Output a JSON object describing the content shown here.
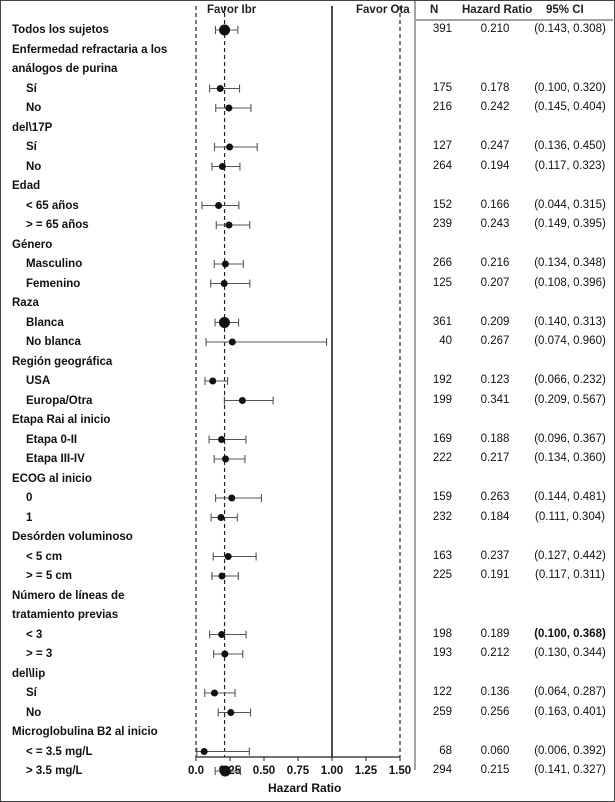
{
  "chart_data": {
    "type": "forest",
    "header": {
      "favor_left": "Favor Ibr",
      "favor_right": "Favor Ota",
      "n": "N",
      "hr": "Hazard Ratio",
      "ci": "95% CI"
    },
    "xlabel": "Hazard Ratio",
    "xlim": [
      0,
      1.5
    ],
    "x_ticks": [
      "0.0",
      "0.25",
      "0.50",
      "0.75",
      "1.00",
      "1.25",
      "1.50"
    ],
    "reference_line": 1.0,
    "overall_line": 0.21,
    "rows": [
      {
        "label": "Todos los sujetos",
        "kind": "row",
        "level": 0,
        "n": "391",
        "hr": "0.210",
        "ci": "(0.143, 0.308)",
        "est": 0.21,
        "lo": 0.143,
        "hi": 0.308,
        "big": true
      },
      {
        "label": "Enfermedad refractaria a los",
        "kind": "header",
        "level": 0
      },
      {
        "label": "análogos de purina",
        "kind": "header",
        "level": 0
      },
      {
        "label": "Sí",
        "kind": "row",
        "level": 1,
        "n": "175",
        "hr": "0.178",
        "ci": "(0.100, 0.320)",
        "est": 0.178,
        "lo": 0.1,
        "hi": 0.32
      },
      {
        "label": "No",
        "kind": "row",
        "level": 1,
        "n": "216",
        "hr": "0.242",
        "ci": "(0.145, 0.404)",
        "est": 0.242,
        "lo": 0.145,
        "hi": 0.404
      },
      {
        "label": "del\\17P",
        "kind": "header",
        "level": 0
      },
      {
        "label": "Sí",
        "kind": "row",
        "level": 1,
        "n": "127",
        "hr": "0.247",
        "ci": "(0.136, 0.450)",
        "est": 0.247,
        "lo": 0.136,
        "hi": 0.45
      },
      {
        "label": "No",
        "kind": "row",
        "level": 1,
        "n": "264",
        "hr": "0.194",
        "ci": "(0.117, 0.323)",
        "est": 0.194,
        "lo": 0.117,
        "hi": 0.323
      },
      {
        "label": "Edad",
        "kind": "header",
        "level": 0
      },
      {
        "label": "< 65 años",
        "kind": "row",
        "level": 1,
        "n": "152",
        "hr": "0.166",
        "ci": "(0.044, 0.315)",
        "est": 0.166,
        "lo": 0.044,
        "hi": 0.315
      },
      {
        "label": "> = 65 años",
        "kind": "row",
        "level": 1,
        "n": "239",
        "hr": "0.243",
        "ci": "(0.149, 0.395)",
        "est": 0.243,
        "lo": 0.149,
        "hi": 0.395
      },
      {
        "label": "Género",
        "kind": "header",
        "level": 0
      },
      {
        "label": "Masculino",
        "kind": "row",
        "level": 1,
        "n": "266",
        "hr": "0.216",
        "ci": "(0.134, 0.348)",
        "est": 0.216,
        "lo": 0.134,
        "hi": 0.348
      },
      {
        "label": "Femenino",
        "kind": "row",
        "level": 1,
        "n": "125",
        "hr": "0.207",
        "ci": "(0.108, 0.396)",
        "est": 0.207,
        "lo": 0.108,
        "hi": 0.396
      },
      {
        "label": "Raza",
        "kind": "header",
        "level": 0
      },
      {
        "label": "Blanca",
        "kind": "row",
        "level": 1,
        "n": "361",
        "hr": "0.209",
        "ci": "(0.140, 0.313)",
        "est": 0.209,
        "lo": 0.14,
        "hi": 0.313,
        "big": true
      },
      {
        "label": "No blanca",
        "kind": "row",
        "level": 1,
        "n": "40",
        "hr": "0.267",
        "ci": "(0.074, 0.960)",
        "est": 0.267,
        "lo": 0.074,
        "hi": 0.96
      },
      {
        "label": "Región geográfica",
        "kind": "header",
        "level": 0
      },
      {
        "label": "USA",
        "kind": "row",
        "level": 1,
        "n": "192",
        "hr": "0.123",
        "ci": "(0.066, 0.232)",
        "est": 0.123,
        "lo": 0.066,
        "hi": 0.232
      },
      {
        "label": "Europa/Otra",
        "kind": "row",
        "level": 1,
        "n": "199",
        "hr": "0.341",
        "ci": "(0.209, 0.567)",
        "est": 0.341,
        "lo": 0.209,
        "hi": 0.567
      },
      {
        "label": "Etapa Rai al inicio",
        "kind": "header",
        "level": 0
      },
      {
        "label": "Etapa 0-II",
        "kind": "row",
        "level": 1,
        "n": "169",
        "hr": "0.188",
        "ci": "(0.096, 0.367)",
        "est": 0.188,
        "lo": 0.096,
        "hi": 0.367
      },
      {
        "label": "Etapa III-IV",
        "kind": "row",
        "level": 1,
        "n": "222",
        "hr": "0.217",
        "ci": "(0.134, 0.360)",
        "est": 0.217,
        "lo": 0.134,
        "hi": 0.36
      },
      {
        "label": "ECOG al inicio",
        "kind": "header",
        "level": 0
      },
      {
        "label": "0",
        "kind": "row",
        "level": 1,
        "n": "159",
        "hr": "0.263",
        "ci": "(0.144, 0.481)",
        "est": 0.263,
        "lo": 0.144,
        "hi": 0.481
      },
      {
        "label": "1",
        "kind": "row",
        "level": 1,
        "n": "232",
        "hr": "0.184",
        "ci": "(0.111, 0.304)",
        "est": 0.184,
        "lo": 0.111,
        "hi": 0.304
      },
      {
        "label": "Desórden voluminoso",
        "kind": "header",
        "level": 0
      },
      {
        "label": "< 5 cm",
        "kind": "row",
        "level": 1,
        "n": "163",
        "hr": "0.237",
        "ci": "(0.127, 0.442)",
        "est": 0.237,
        "lo": 0.127,
        "hi": 0.442
      },
      {
        "label": "> = 5 cm",
        "kind": "row",
        "level": 1,
        "n": "225",
        "hr": "0.191",
        "ci": "(0.117, 0.311)",
        "est": 0.191,
        "lo": 0.117,
        "hi": 0.311
      },
      {
        "label": "Número de líneas de",
        "kind": "header",
        "level": 0
      },
      {
        "label": "tratamiento previas",
        "kind": "header",
        "level": 0
      },
      {
        "label": "< 3",
        "kind": "row",
        "level": 1,
        "n": "198",
        "hr": "0.189",
        "ci": "(0.100, 0.368)",
        "est": 0.189,
        "lo": 0.1,
        "hi": 0.368,
        "bold_ci": true
      },
      {
        "label": "> = 3",
        "kind": "row",
        "level": 1,
        "n": "193",
        "hr": "0.212",
        "ci": "(0.130, 0.344)",
        "est": 0.212,
        "lo": 0.13,
        "hi": 0.344
      },
      {
        "label": "del\\lip",
        "kind": "header",
        "level": 0
      },
      {
        "label": "Sí",
        "kind": "row",
        "level": 1,
        "n": "122",
        "hr": "0.136",
        "ci": "(0.064, 0.287)",
        "est": 0.136,
        "lo": 0.064,
        "hi": 0.287
      },
      {
        "label": "No",
        "kind": "row",
        "level": 1,
        "n": "259",
        "hr": "0.256",
        "ci": "(0.163, 0.401)",
        "est": 0.256,
        "lo": 0.163,
        "hi": 0.401
      },
      {
        "label": "Microglobulina B2 al inicio",
        "kind": "header",
        "level": 0
      },
      {
        "label": "< = 3.5 mg/L",
        "kind": "row",
        "level": 1,
        "n": "68",
        "hr": "0.060",
        "ci": "(0.006, 0.392)",
        "est": 0.06,
        "lo": 0.006,
        "hi": 0.392
      },
      {
        "label": "> 3.5 mg/L",
        "kind": "row",
        "level": 1,
        "n": "294",
        "hr": "0.215",
        "ci": "(0.141, 0.327)",
        "est": 0.215,
        "lo": 0.141,
        "hi": 0.327,
        "big": true
      }
    ]
  }
}
